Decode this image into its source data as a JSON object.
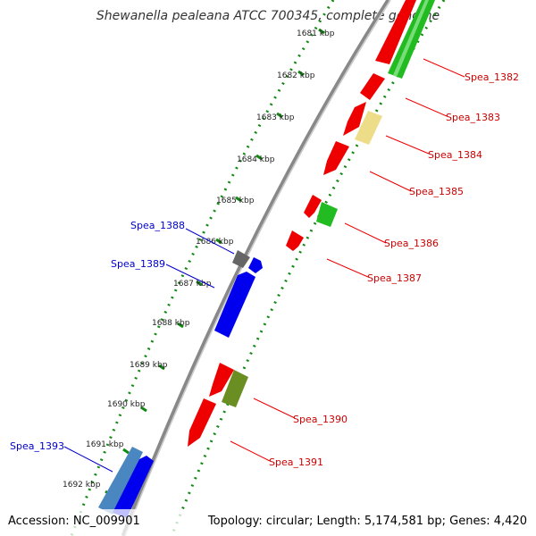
{
  "title": "Shewanella pealeana ATCC 700345, complete genome",
  "ticks": [
    "1681 kbp",
    "1682 kbp",
    "1683 kbp",
    "1684 kbp",
    "1685 kbp",
    "1686 kbp",
    "1687 kbp",
    "1688 kbp",
    "1689 kbp",
    "1690 kbp",
    "1691 kbp",
    "1692 kbp"
  ],
  "gene_labels_right": [
    "Spea_1382",
    "Spea_1383",
    "Spea_1384",
    "Spea_1385",
    "Spea_1386",
    "Spea_1387",
    "Spea_1390",
    "Spea_1391"
  ],
  "gene_labels_left": [
    "Spea_1388",
    "Spea_1389",
    "Spea_1393"
  ],
  "footer": {
    "accession": "Accession: NC_009901",
    "summary": "Topology: circular; Length: 5,174,581 bp; Genes: 4,420"
  },
  "colors": {
    "red": "#ee0000",
    "green": "#22bb22",
    "yellow": "#eedd88",
    "blue": "#0000ee",
    "steel_blue": "#4a86c0",
    "gray": "#666666",
    "olive": "#6b8e23",
    "tick_green": "#118811",
    "backbone": "#888888"
  }
}
